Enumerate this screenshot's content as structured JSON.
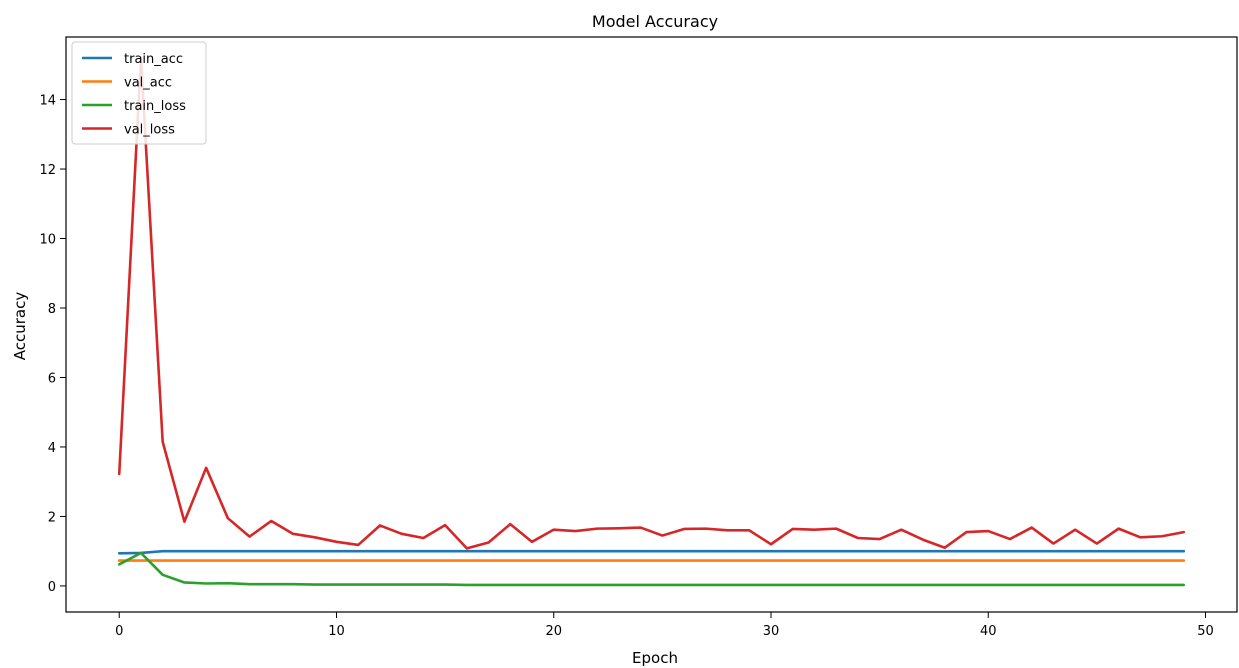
{
  "chart_data": {
    "type": "line",
    "title": "Model Accuracy",
    "xlabel": "Epoch",
    "ylabel": "Accuracy",
    "xlim": [
      -2.45,
      51.45
    ],
    "ylim": [
      -0.75,
      15.8
    ],
    "xticks": [
      0,
      10,
      20,
      30,
      40,
      50
    ],
    "yticks": [
      0,
      2,
      4,
      6,
      8,
      10,
      12,
      14
    ],
    "grid": false,
    "legend_position": "top-left",
    "x": [
      0,
      1,
      2,
      3,
      4,
      5,
      6,
      7,
      8,
      9,
      10,
      11,
      12,
      13,
      14,
      15,
      16,
      17,
      18,
      19,
      20,
      21,
      22,
      23,
      24,
      25,
      26,
      27,
      28,
      29,
      30,
      31,
      32,
      33,
      34,
      35,
      36,
      37,
      38,
      39,
      40,
      41,
      42,
      43,
      44,
      45,
      46,
      47,
      48,
      49
    ],
    "series": [
      {
        "name": "train_acc",
        "color": "#1f77b4",
        "values": [
          0.94,
          0.95,
          1.0,
          1.0,
          1.0,
          1.0,
          1.0,
          1.0,
          1.0,
          1.0,
          1.0,
          1.0,
          1.0,
          1.0,
          1.0,
          1.0,
          1.0,
          1.0,
          1.0,
          1.0,
          1.0,
          1.0,
          1.0,
          1.0,
          1.0,
          1.0,
          1.0,
          1.0,
          1.0,
          1.0,
          1.0,
          1.0,
          1.0,
          1.0,
          1.0,
          1.0,
          1.0,
          1.0,
          1.0,
          1.0,
          1.0,
          1.0,
          1.0,
          1.0,
          1.0,
          1.0,
          1.0,
          1.0,
          1.0,
          1.0
        ]
      },
      {
        "name": "val_acc",
        "color": "#ff7f0e",
        "values": [
          0.73,
          0.73,
          0.73,
          0.73,
          0.73,
          0.73,
          0.73,
          0.73,
          0.73,
          0.73,
          0.73,
          0.73,
          0.73,
          0.73,
          0.73,
          0.73,
          0.73,
          0.73,
          0.73,
          0.73,
          0.73,
          0.73,
          0.73,
          0.73,
          0.73,
          0.73,
          0.73,
          0.73,
          0.73,
          0.73,
          0.73,
          0.73,
          0.73,
          0.73,
          0.73,
          0.73,
          0.73,
          0.73,
          0.73,
          0.73,
          0.73,
          0.73,
          0.73,
          0.73,
          0.73,
          0.73,
          0.73,
          0.73,
          0.73,
          0.73
        ]
      },
      {
        "name": "train_loss",
        "color": "#2ca02c",
        "values": [
          0.62,
          0.95,
          0.32,
          0.1,
          0.07,
          0.08,
          0.05,
          0.05,
          0.05,
          0.04,
          0.04,
          0.04,
          0.04,
          0.04,
          0.04,
          0.04,
          0.03,
          0.03,
          0.03,
          0.03,
          0.03,
          0.03,
          0.03,
          0.03,
          0.03,
          0.03,
          0.03,
          0.03,
          0.03,
          0.03,
          0.03,
          0.03,
          0.03,
          0.03,
          0.03,
          0.03,
          0.03,
          0.03,
          0.03,
          0.03,
          0.03,
          0.03,
          0.03,
          0.03,
          0.03,
          0.03,
          0.03,
          0.03,
          0.03,
          0.03
        ]
      },
      {
        "name": "val_loss",
        "color": "#d62728",
        "values": [
          3.22,
          15.2,
          4.15,
          1.85,
          3.4,
          1.95,
          1.42,
          1.87,
          1.5,
          1.4,
          1.27,
          1.18,
          1.74,
          1.5,
          1.38,
          1.75,
          1.08,
          1.25,
          1.78,
          1.27,
          1.62,
          1.58,
          1.65,
          1.66,
          1.68,
          1.45,
          1.64,
          1.65,
          1.6,
          1.6,
          1.2,
          1.64,
          1.62,
          1.65,
          1.38,
          1.35,
          1.62,
          1.33,
          1.1,
          1.55,
          1.58,
          1.35,
          1.68,
          1.22,
          1.62,
          1.22,
          1.65,
          1.4,
          1.43,
          1.55
        ]
      }
    ]
  }
}
